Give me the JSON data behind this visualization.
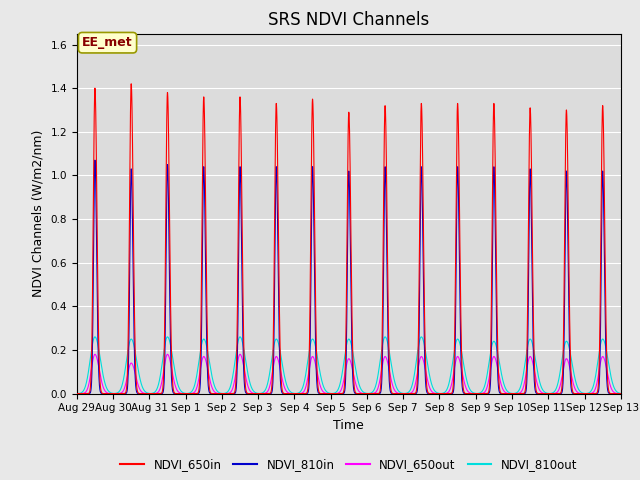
{
  "title": "SRS NDVI Channels",
  "xlabel": "Time",
  "ylabel": "NDVI Channels (W/m2/nm)",
  "ylim": [
    0,
    1.65
  ],
  "yticks": [
    0.0,
    0.2,
    0.4,
    0.6,
    0.8,
    1.0,
    1.2,
    1.4,
    1.6
  ],
  "figure_bg_color": "#e8e8e8",
  "plot_bg_color": "#dcdcdc",
  "colors": {
    "NDVI_650in": "#ff0000",
    "NDVI_810in": "#0000cc",
    "NDVI_650out": "#ff00ff",
    "NDVI_810out": "#00dddd"
  },
  "annotation_text": "EE_met",
  "annotation_color": "#880000",
  "annotation_bg": "#ffffcc",
  "n_cycles": 15,
  "peak_650in": [
    1.4,
    1.42,
    1.38,
    1.36,
    1.36,
    1.33,
    1.35,
    1.29,
    1.32,
    1.33,
    1.33,
    1.33,
    1.31,
    1.3,
    1.32
  ],
  "peak_810in": [
    1.07,
    1.03,
    1.05,
    1.04,
    1.04,
    1.04,
    1.04,
    1.02,
    1.04,
    1.04,
    1.04,
    1.04,
    1.03,
    1.02,
    1.02
  ],
  "peak_650out": [
    0.18,
    0.14,
    0.18,
    0.17,
    0.18,
    0.17,
    0.17,
    0.16,
    0.17,
    0.17,
    0.17,
    0.17,
    0.17,
    0.16,
    0.17
  ],
  "peak_810out": [
    0.26,
    0.25,
    0.26,
    0.25,
    0.26,
    0.25,
    0.25,
    0.25,
    0.26,
    0.26,
    0.25,
    0.24,
    0.25,
    0.24,
    0.25
  ],
  "x_tick_labels": [
    "Aug 29",
    "Aug 30",
    "Aug 31",
    "Sep 1",
    "Sep 2",
    "Sep 3",
    "Sep 4",
    "Sep 5",
    "Sep 6",
    "Sep 7",
    "Sep 8",
    "Sep 9",
    "Sep 10",
    "Sep 11",
    "Sep 12",
    "Sep 13"
  ],
  "title_fontsize": 12,
  "label_fontsize": 9,
  "tick_fontsize": 7.5,
  "linewidth_in": 0.8,
  "linewidth_out": 0.8
}
